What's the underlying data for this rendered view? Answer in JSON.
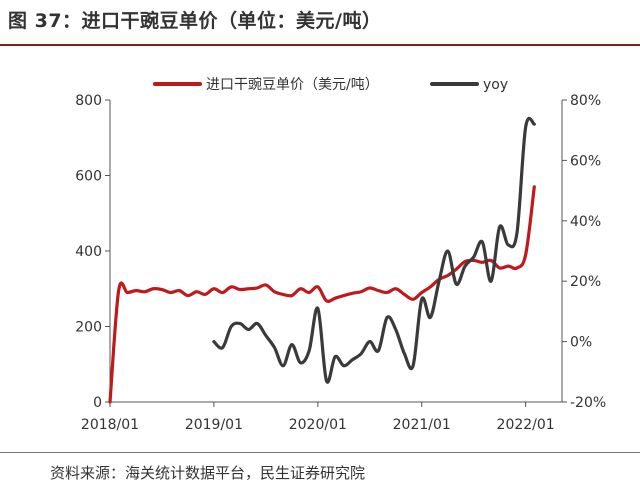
{
  "header": {
    "title": "图 37：进口干豌豆单价（单位：美元/吨）"
  },
  "footer": {
    "source": "资料来源：海关统计数据平台，民生证券研究院"
  },
  "colors": {
    "price": "#c0191c",
    "yoy": "#3a3a3a",
    "rule": "#8b1a1a"
  },
  "chart_data": {
    "type": "line",
    "title": "图 37：进口干豌豆单价（单位：美元/吨）",
    "legend_position": "top",
    "grid": false,
    "x_ticks": [
      "2018/01",
      "2019/01",
      "2020/01",
      "2021/01",
      "2022/01"
    ],
    "y_left": {
      "ticks": [
        "0",
        "200",
        "400",
        "600",
        "800"
      ],
      "range": [
        0,
        800
      ]
    },
    "y_right": {
      "ticks": [
        "-20%",
        "0%",
        "20%",
        "40%",
        "60%",
        "80%"
      ],
      "range": [
        -20,
        80
      ]
    },
    "series": [
      {
        "name": "进口干豌豆单价（美元/吨）",
        "axis": "left",
        "x": [
          "2018-01",
          "2018-02",
          "2018-03",
          "2018-04",
          "2018-05",
          "2018-06",
          "2018-07",
          "2018-08",
          "2018-09",
          "2018-10",
          "2018-11",
          "2018-12",
          "2019-01",
          "2019-02",
          "2019-03",
          "2019-04",
          "2019-05",
          "2019-06",
          "2019-07",
          "2019-08",
          "2019-09",
          "2019-10",
          "2019-11",
          "2019-12",
          "2020-01",
          "2020-02",
          "2020-03",
          "2020-04",
          "2020-05",
          "2020-06",
          "2020-07",
          "2020-08",
          "2020-09",
          "2020-10",
          "2020-11",
          "2020-12",
          "2021-01",
          "2021-02",
          "2021-03",
          "2021-04",
          "2021-05",
          "2021-06",
          "2021-07",
          "2021-08",
          "2021-09",
          "2021-10",
          "2021-11",
          "2021-12",
          "2022-01",
          "2022-02"
        ],
        "values": [
          0,
          295,
          290,
          295,
          292,
          300,
          298,
          290,
          295,
          282,
          292,
          285,
          300,
          290,
          305,
          298,
          300,
          302,
          310,
          292,
          285,
          282,
          300,
          290,
          305,
          268,
          275,
          282,
          288,
          292,
          302,
          295,
          290,
          300,
          285,
          272,
          290,
          305,
          325,
          335,
          352,
          372,
          375,
          370,
          375,
          355,
          360,
          355,
          390,
          570
        ]
      },
      {
        "name": "yoy",
        "axis": "right",
        "x": [
          "2019-01",
          "2019-02",
          "2019-03",
          "2019-04",
          "2019-05",
          "2019-06",
          "2019-07",
          "2019-08",
          "2019-09",
          "2019-10",
          "2019-11",
          "2019-12",
          "2020-01",
          "2020-02",
          "2020-03",
          "2020-04",
          "2020-05",
          "2020-06",
          "2020-07",
          "2020-08",
          "2020-09",
          "2020-10",
          "2020-11",
          "2020-12",
          "2021-01",
          "2021-02",
          "2021-03",
          "2021-04",
          "2021-05",
          "2021-06",
          "2021-07",
          "2021-08",
          "2021-09",
          "2021-10",
          "2021-11",
          "2021-12",
          "2022-01",
          "2022-02"
        ],
        "values": [
          0,
          -2,
          5,
          6,
          4,
          6,
          2,
          -2,
          -8,
          -1,
          -7,
          -3,
          11,
          -13,
          -5,
          -8,
          -6,
          -4,
          0,
          -3,
          8,
          4,
          -4,
          -8,
          14,
          8,
          20,
          30,
          19,
          25,
          28,
          33,
          20,
          38,
          32,
          36,
          71,
          72
        ]
      }
    ]
  }
}
